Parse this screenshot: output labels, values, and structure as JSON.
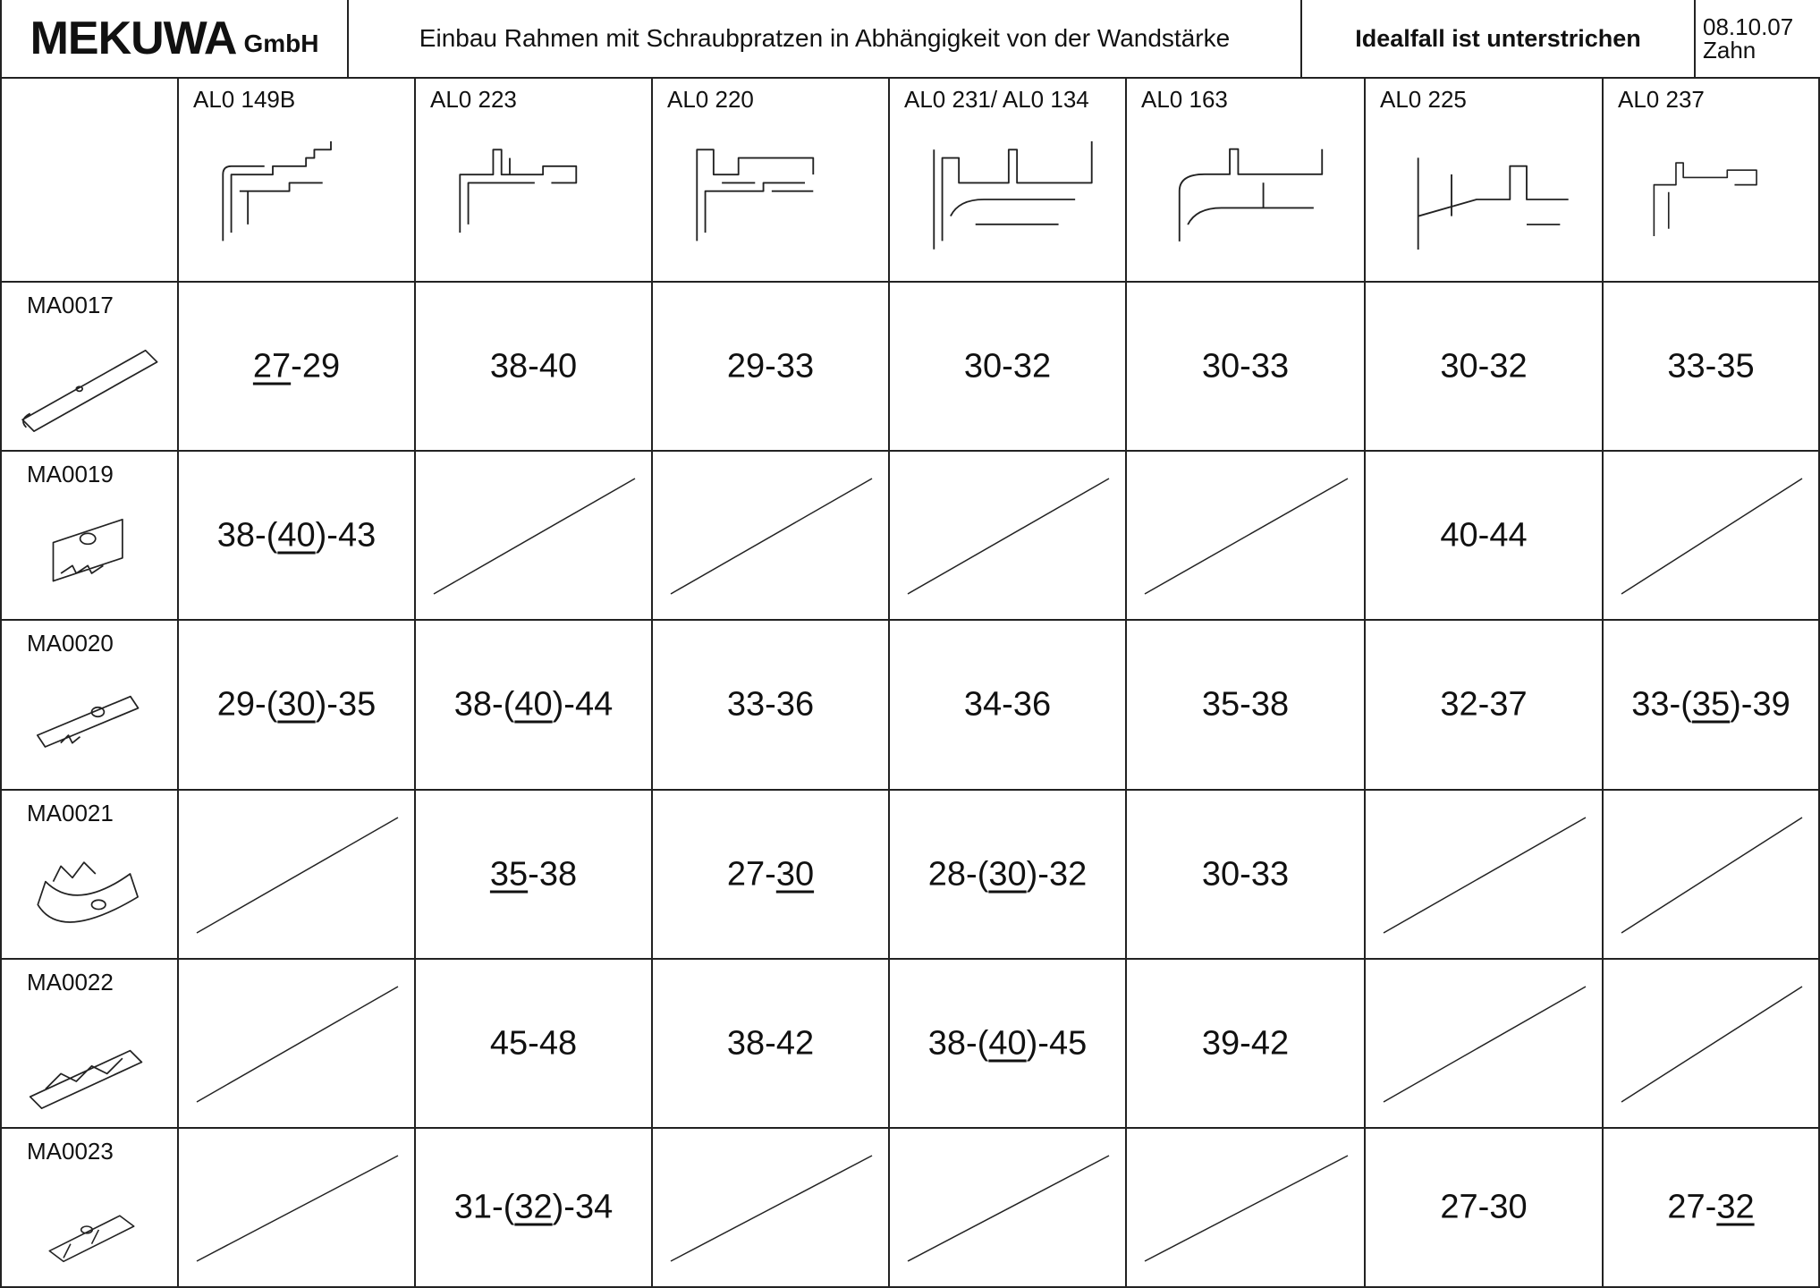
{
  "header": {
    "logo_main": "MEKUWA",
    "logo_sub": "GmbH",
    "title": "Einbau Rahmen mit Schraubpratzen in Abhängigkeit von der Wandstärke",
    "ideal": "Idealfall ist unterstrichen",
    "date": "08.10.07",
    "author": "Zahn"
  },
  "columns": [
    {
      "label": "AL0 149B",
      "icon": "profile-al0-149b-icon"
    },
    {
      "label": "AL0 223",
      "icon": "profile-al0-223-icon"
    },
    {
      "label": "AL0 220",
      "icon": "profile-al0-220-icon"
    },
    {
      "label": "AL0 231/ AL0 134",
      "icon": "profile-al0-231-icon"
    },
    {
      "label": "AL0 163",
      "icon": "profile-al0-163-icon"
    },
    {
      "label": "AL0 225",
      "icon": "profile-al0-225-icon"
    },
    {
      "label": "AL0 237",
      "icon": "profile-al0-237-icon"
    }
  ],
  "rows": [
    {
      "label": "MA0017",
      "icon": "screw-claw-ma0017-icon",
      "cells": [
        [
          {
            "t": "27",
            "u": true
          },
          {
            "t": "-29"
          }
        ],
        [
          {
            "t": "38-40"
          }
        ],
        [
          {
            "t": "29-33"
          }
        ],
        [
          {
            "t": "30-32"
          }
        ],
        [
          {
            "t": "30-33"
          }
        ],
        [
          {
            "t": "30-32"
          }
        ],
        [
          {
            "t": "33-35"
          }
        ]
      ]
    },
    {
      "label": "MA0019",
      "icon": "screw-claw-ma0019-icon",
      "cells": [
        [
          {
            "t": "38-("
          },
          {
            "t": "40",
            "u": true
          },
          {
            "t": ")-43"
          }
        ],
        null,
        null,
        null,
        null,
        [
          {
            "t": "40-44"
          }
        ],
        null
      ]
    },
    {
      "label": "MA0020",
      "icon": "screw-claw-ma0020-icon",
      "cells": [
        [
          {
            "t": "29-("
          },
          {
            "t": "30",
            "u": true
          },
          {
            "t": ")-35"
          }
        ],
        [
          {
            "t": "38-("
          },
          {
            "t": "40",
            "u": true
          },
          {
            "t": ")-44"
          }
        ],
        [
          {
            "t": "33-36"
          }
        ],
        [
          {
            "t": "34-36"
          }
        ],
        [
          {
            "t": "35-38"
          }
        ],
        [
          {
            "t": "32-37"
          }
        ],
        [
          {
            "t": "33-("
          },
          {
            "t": "35",
            "u": true
          },
          {
            "t": ")-39"
          }
        ]
      ]
    },
    {
      "label": "MA0021",
      "icon": "screw-claw-ma0021-icon",
      "cells": [
        null,
        [
          {
            "t": "35",
            "u": true
          },
          {
            "t": "-38"
          }
        ],
        [
          {
            "t": "27-"
          },
          {
            "t": "30",
            "u": true
          }
        ],
        [
          {
            "t": "28-("
          },
          {
            "t": "30",
            "u": true
          },
          {
            "t": ")-32"
          }
        ],
        [
          {
            "t": "30-33"
          }
        ],
        null,
        null
      ]
    },
    {
      "label": "MA0022",
      "icon": "screw-claw-ma0022-icon",
      "cells": [
        null,
        [
          {
            "t": "45-48"
          }
        ],
        [
          {
            "t": "38-42"
          }
        ],
        [
          {
            "t": "38-("
          },
          {
            "t": "40",
            "u": true
          },
          {
            "t": ")-45"
          }
        ],
        [
          {
            "t": "39-42"
          }
        ],
        null,
        null
      ]
    },
    {
      "label": "MA0023",
      "icon": "screw-claw-ma0023-icon",
      "cells": [
        null,
        [
          {
            "t": "31-("
          },
          {
            "t": "32",
            "u": true
          },
          {
            "t": ")-34"
          }
        ],
        null,
        null,
        null,
        [
          {
            "t": "27-30"
          }
        ],
        [
          {
            "t": "27-"
          },
          {
            "t": "32",
            "u": true
          }
        ]
      ]
    }
  ]
}
